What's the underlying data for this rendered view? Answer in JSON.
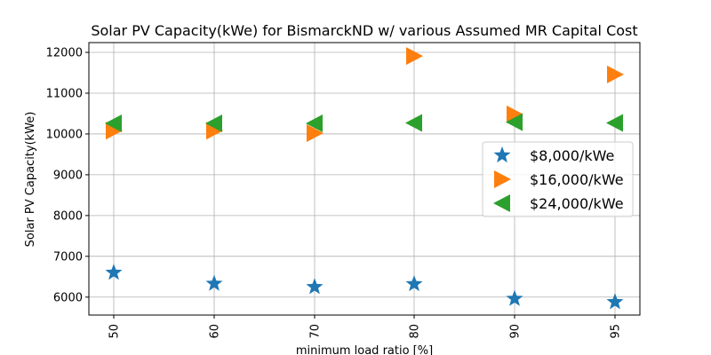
{
  "chart_data": {
    "type": "scatter",
    "title": "Solar PV Capacity(kWe) for BismarckND w/ various Assumed MR Capital Cost",
    "xlabel": "minimum load ratio [%]",
    "ylabel": "Solar PV Capacity(kWe)",
    "categories": [
      "50",
      "60",
      "70",
      "80",
      "90",
      "95"
    ],
    "ylim": [
      5560,
      12240
    ],
    "yticks": [
      6000,
      7000,
      8000,
      9000,
      10000,
      11000,
      12000
    ],
    "grid": true,
    "legend_position": "center-right",
    "series": [
      {
        "name": "$8,000/kWe",
        "marker": "star",
        "color": "#1f77b4",
        "values": [
          6600,
          6330,
          6250,
          6320,
          5960,
          5880
        ]
      },
      {
        "name": "$16,000/kWe",
        "marker": "triangle-right",
        "color": "#ff7f0e",
        "values": [
          10080,
          10080,
          10020,
          11910,
          10480,
          11460
        ]
      },
      {
        "name": "$24,000/kWe",
        "marker": "triangle-left",
        "color": "#2ca02c",
        "values": [
          10260,
          10260,
          10260,
          10270,
          10290,
          10270
        ]
      }
    ]
  }
}
